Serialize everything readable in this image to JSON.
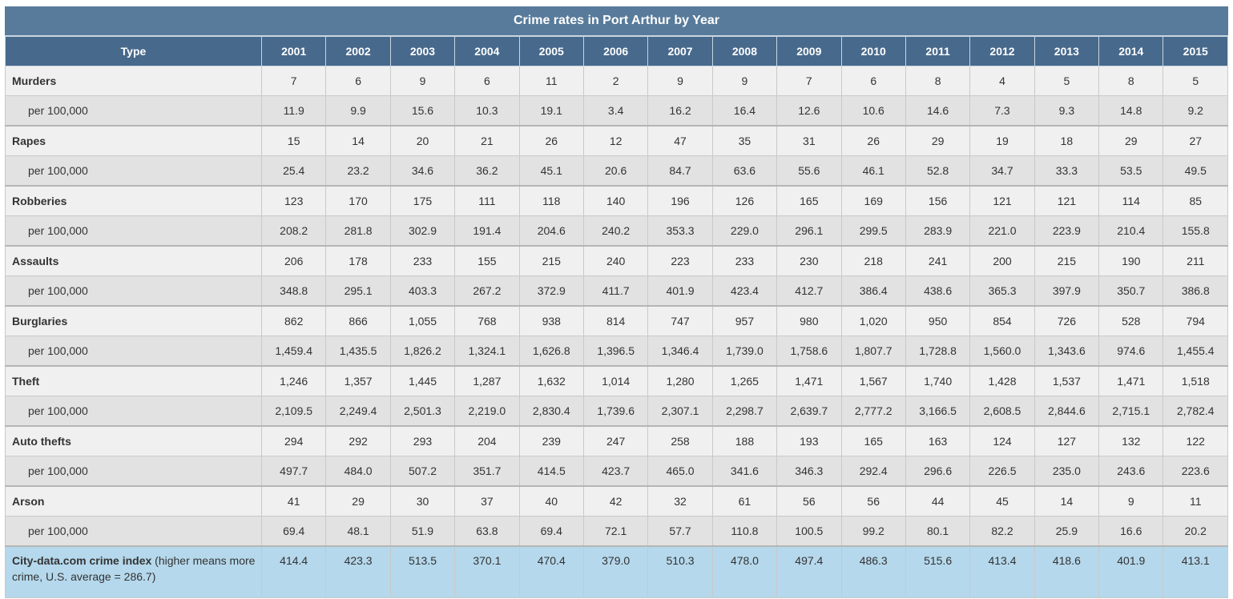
{
  "table": {
    "title": "Crime rates in Port Arthur by Year",
    "type_header": "Type",
    "years": [
      "2001",
      "2002",
      "2003",
      "2004",
      "2005",
      "2006",
      "2007",
      "2008",
      "2009",
      "2010",
      "2011",
      "2012",
      "2013",
      "2014",
      "2015"
    ],
    "rows": [
      {
        "type": "Murders",
        "counts": [
          "7",
          "6",
          "9",
          "6",
          "11",
          "2",
          "9",
          "9",
          "7",
          "6",
          "8",
          "4",
          "5",
          "8",
          "5"
        ],
        "rate_label": "per 100,000",
        "rates": [
          "11.9",
          "9.9",
          "15.6",
          "10.3",
          "19.1",
          "3.4",
          "16.2",
          "16.4",
          "12.6",
          "10.6",
          "14.6",
          "7.3",
          "9.3",
          "14.8",
          "9.2"
        ]
      },
      {
        "type": "Rapes",
        "counts": [
          "15",
          "14",
          "20",
          "21",
          "26",
          "12",
          "47",
          "35",
          "31",
          "26",
          "29",
          "19",
          "18",
          "29",
          "27"
        ],
        "rate_label": "per 100,000",
        "rates": [
          "25.4",
          "23.2",
          "34.6",
          "36.2",
          "45.1",
          "20.6",
          "84.7",
          "63.6",
          "55.6",
          "46.1",
          "52.8",
          "34.7",
          "33.3",
          "53.5",
          "49.5"
        ]
      },
      {
        "type": "Robberies",
        "counts": [
          "123",
          "170",
          "175",
          "111",
          "118",
          "140",
          "196",
          "126",
          "165",
          "169",
          "156",
          "121",
          "121",
          "114",
          "85"
        ],
        "rate_label": "per 100,000",
        "rates": [
          "208.2",
          "281.8",
          "302.9",
          "191.4",
          "204.6",
          "240.2",
          "353.3",
          "229.0",
          "296.1",
          "299.5",
          "283.9",
          "221.0",
          "223.9",
          "210.4",
          "155.8"
        ]
      },
      {
        "type": "Assaults",
        "counts": [
          "206",
          "178",
          "233",
          "155",
          "215",
          "240",
          "223",
          "233",
          "230",
          "218",
          "241",
          "200",
          "215",
          "190",
          "211"
        ],
        "rate_label": "per 100,000",
        "rates": [
          "348.8",
          "295.1",
          "403.3",
          "267.2",
          "372.9",
          "411.7",
          "401.9",
          "423.4",
          "412.7",
          "386.4",
          "438.6",
          "365.3",
          "397.9",
          "350.7",
          "386.8"
        ]
      },
      {
        "type": "Burglaries",
        "counts": [
          "862",
          "866",
          "1,055",
          "768",
          "938",
          "814",
          "747",
          "957",
          "980",
          "1,020",
          "950",
          "854",
          "726",
          "528",
          "794"
        ],
        "rate_label": "per 100,000",
        "rates": [
          "1,459.4",
          "1,435.5",
          "1,826.2",
          "1,324.1",
          "1,626.8",
          "1,396.5",
          "1,346.4",
          "1,739.0",
          "1,758.6",
          "1,807.7",
          "1,728.8",
          "1,560.0",
          "1,343.6",
          "974.6",
          "1,455.4"
        ]
      },
      {
        "type": "Theft",
        "counts": [
          "1,246",
          "1,357",
          "1,445",
          "1,287",
          "1,632",
          "1,014",
          "1,280",
          "1,265",
          "1,471",
          "1,567",
          "1,740",
          "1,428",
          "1,537",
          "1,471",
          "1,518"
        ],
        "rate_label": "per 100,000",
        "rates": [
          "2,109.5",
          "2,249.4",
          "2,501.3",
          "2,219.0",
          "2,830.4",
          "1,739.6",
          "2,307.1",
          "2,298.7",
          "2,639.7",
          "2,777.2",
          "3,166.5",
          "2,608.5",
          "2,844.6",
          "2,715.1",
          "2,782.4"
        ]
      },
      {
        "type": "Auto thefts",
        "counts": [
          "294",
          "292",
          "293",
          "204",
          "239",
          "247",
          "258",
          "188",
          "193",
          "165",
          "163",
          "124",
          "127",
          "132",
          "122"
        ],
        "rate_label": "per 100,000",
        "rates": [
          "497.7",
          "484.0",
          "507.2",
          "351.7",
          "414.5",
          "423.7",
          "465.0",
          "341.6",
          "346.3",
          "292.4",
          "296.6",
          "226.5",
          "235.0",
          "243.6",
          "223.6"
        ]
      },
      {
        "type": "Arson",
        "counts": [
          "41",
          "29",
          "30",
          "37",
          "40",
          "42",
          "32",
          "61",
          "56",
          "56",
          "44",
          "45",
          "14",
          "9",
          "11"
        ],
        "rate_label": "per 100,000",
        "rates": [
          "69.4",
          "48.1",
          "51.9",
          "63.8",
          "69.4",
          "72.1",
          "57.7",
          "110.8",
          "100.5",
          "99.2",
          "80.1",
          "82.2",
          "25.9",
          "16.6",
          "20.2"
        ]
      }
    ],
    "index_row": {
      "label_bold": "City-data.com crime index",
      "label_note": " (higher means more crime, U.S. average = 286.7)",
      "values": [
        "414.4",
        "423.3",
        "513.5",
        "370.1",
        "470.4",
        "379.0",
        "510.3",
        "478.0",
        "497.4",
        "486.3",
        "515.6",
        "413.4",
        "418.6",
        "401.9",
        "413.1"
      ]
    }
  }
}
